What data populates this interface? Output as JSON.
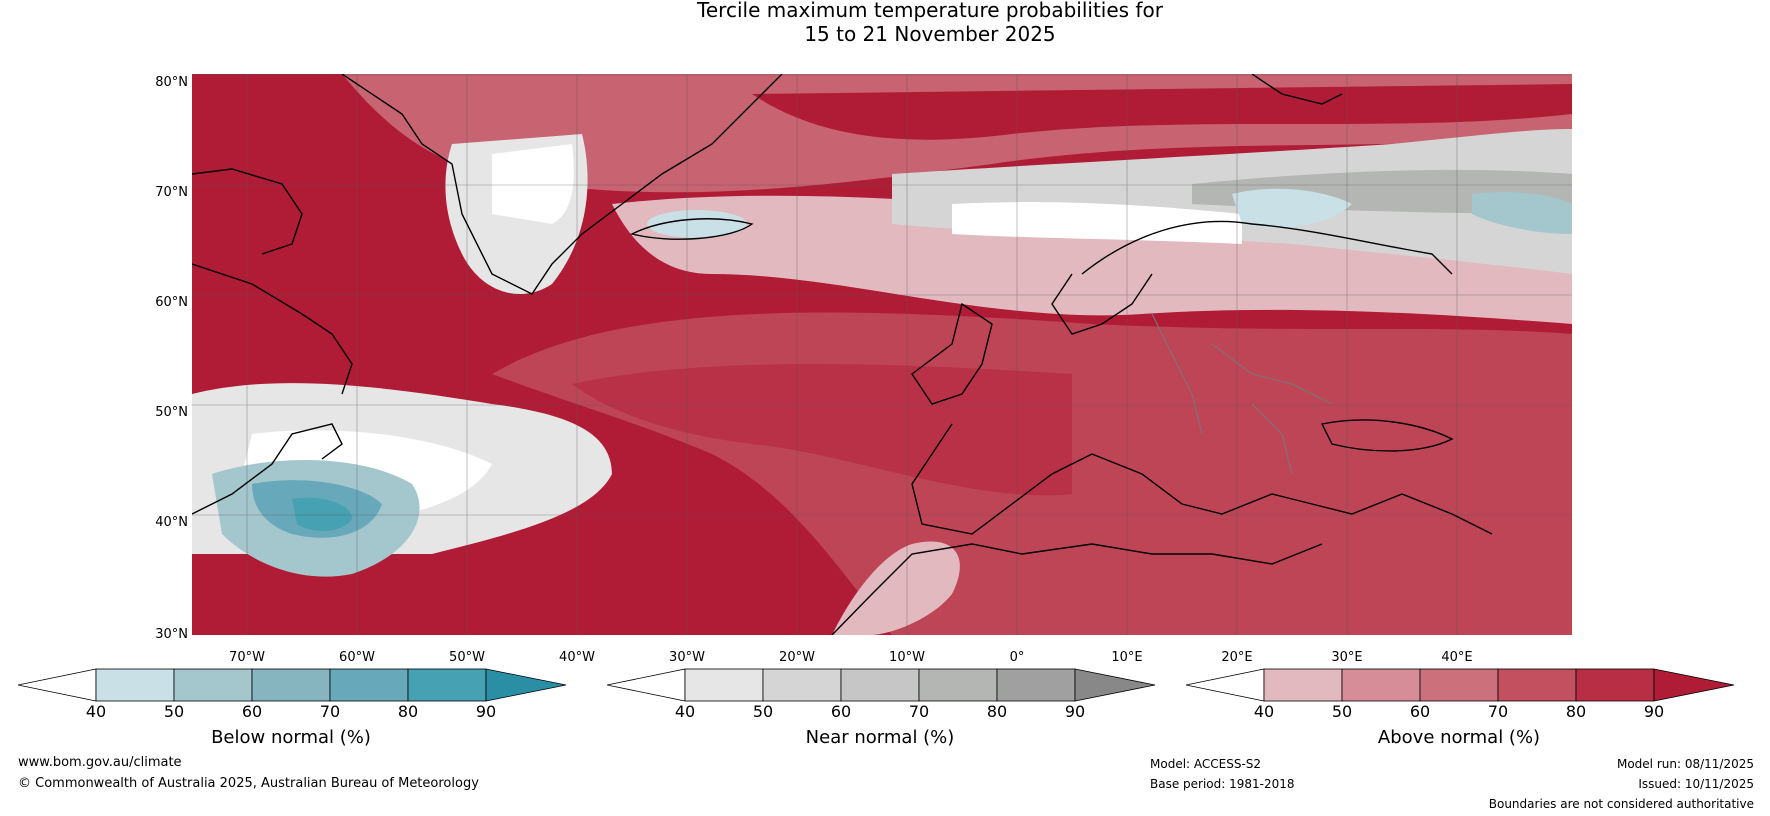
{
  "title_line1": "Tercile maximum temperature probabilities for",
  "title_line2": "15 to 21 November 2025",
  "lat_labels": [
    "80°N",
    "70°N",
    "60°N",
    "50°N",
    "40°N",
    "30°N"
  ],
  "lon_labels": [
    "70°W",
    "60°W",
    "50°W",
    "40°W",
    "30°W",
    "20°W",
    "10°W",
    "0°",
    "10°E",
    "20°E",
    "30°E",
    "40°E"
  ],
  "colorbars": [
    {
      "label": "Below normal (%)",
      "ticks": [
        "40",
        "50",
        "60",
        "70",
        "80",
        "90"
      ],
      "colors": [
        "#c8e0e6",
        "#a4c6cd",
        "#86b5bf",
        "#67a9bb",
        "#46a1b3",
        "#2a8fa5"
      ]
    },
    {
      "label": "Near normal (%)",
      "ticks": [
        "40",
        "50",
        "60",
        "70",
        "80",
        "90"
      ],
      "colors": [
        "#e6e6e6",
        "#d5d5d5",
        "#c6c6c6",
        "#b4b6b4",
        "#a0a0a0",
        "#888888"
      ]
    },
    {
      "label": "Above normal (%)",
      "ticks": [
        "40",
        "50",
        "60",
        "70",
        "80",
        "90"
      ],
      "colors": [
        "#e3b9c0",
        "#d78d98",
        "#cc707c",
        "#c2505f",
        "#b82f45",
        "#b01c36"
      ]
    }
  ],
  "footer": {
    "website": "www.bom.gov.au/climate",
    "copyright": "© Commonwealth of Australia 2025, Australian Bureau of Meteorology",
    "model": "Model: ACCESS-S2",
    "base_period": "Base period: 1981-2018",
    "model_run": "Model run: 08/11/2025",
    "issued": "Issued: 10/11/2025",
    "disclaimer": "Boundaries are not considered authoritative"
  }
}
